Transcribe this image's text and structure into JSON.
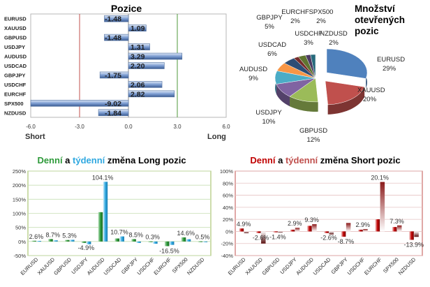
{
  "chart_data": [
    {
      "id": "positions",
      "type": "bar",
      "orientation": "horizontal",
      "title": "Pozice",
      "categories": [
        "EURUSD",
        "XAUUSD",
        "GBPUSD",
        "USDJPY",
        "AUDUSD",
        "USDCAD",
        "GBPJPY",
        "USDCHF",
        "EURCHF",
        "SPX500",
        "NZDUSD"
      ],
      "values": [
        -1.48,
        1.09,
        -1.48,
        1.31,
        3.29,
        2.2,
        -1.75,
        2.06,
        2.82,
        -9.02,
        -1.84
      ],
      "value_labels": [
        "-1.48",
        "1.09",
        "-1.48",
        "1.31",
        "3.29",
        "2.20",
        "-1.75",
        "2.06",
        "2.82",
        "-9.02",
        "-1.84"
      ],
      "xlim": [
        -6.0,
        6.0
      ],
      "ticks": [
        -6.0,
        -3.0,
        0.0,
        3.0,
        6.0
      ],
      "tick_labels": [
        "-6.0",
        "-3.0",
        "0.0",
        "3.0",
        "6.0"
      ],
      "short_label": "Short",
      "long_label": "Long",
      "colors": {
        "bar": "#7f9fd3",
        "bar_dark": "#3b5c93",
        "short_line": "#c0504d",
        "long_line": "#4f9a3a"
      }
    },
    {
      "id": "open-positions",
      "type": "pie",
      "title": "Množství otevřených pozic",
      "title_lines": [
        "Množství",
        "otevřených",
        "pozic"
      ],
      "labels": [
        "EURUSD",
        "XAUUSD",
        "GBPUSD",
        "USDJPY",
        "AUDUSD",
        "USDCAD",
        "GBPJPY",
        "EURCHF",
        "USDCHF",
        "SPX500",
        "NZDUSD"
      ],
      "values": [
        29,
        20,
        12,
        10,
        9,
        6,
        5,
        2,
        3,
        2,
        2
      ],
      "value_labels": [
        "29%",
        "20%",
        "12%",
        "10%",
        "9%",
        "6%",
        "5%",
        "2%",
        "3%",
        "2%",
        "2%"
      ],
      "colors": [
        "#4f81bd",
        "#c0504d",
        "#9bbb59",
        "#8064a2",
        "#4bacc6",
        "#f79646",
        "#2c4d75",
        "#772c2a",
        "#5f7530",
        "#4d3b62",
        "#276a7c"
      ]
    },
    {
      "id": "long-change",
      "type": "bar",
      "title_parts": [
        "Denní",
        " a ",
        "týdenní",
        " změna Long pozic"
      ],
      "title_colors": [
        "#2e9a3a",
        "#000000",
        "#2fa8e0",
        "#000000"
      ],
      "categories": [
        "EURUSD",
        "XAUUSD",
        "GBPUSD",
        "USDJPY",
        "AUDUSD",
        "USDCAD",
        "GBPJPY",
        "USDCHF",
        "EURCHF",
        "SPX500",
        "NZDUSD"
      ],
      "series": [
        {
          "values": [
            2.6,
            8.7,
            5.3,
            -4.9,
            104.1,
            10.7,
            8.5,
            0.3,
            -16.5,
            14.6,
            0.5
          ]
        },
        {
          "values": [
            2.0,
            4.0,
            6.0,
            -10.0,
            212.0,
            18.0,
            -5.0,
            -8.0,
            -12.0,
            8.0,
            0.0
          ]
        }
      ],
      "data_labels": [
        "2.6%",
        "8.7%",
        "5.3%",
        "-4.9%",
        "104.1%",
        "10.7%",
        "8.5%",
        "0.3%",
        "-16.5%",
        "14.6%",
        "0.5%"
      ],
      "ylim": [
        -50,
        250
      ],
      "ticks": [
        -50,
        0,
        50,
        100,
        150,
        200,
        250
      ],
      "tick_labels": [
        "-50%",
        "0%",
        "50%",
        "100%",
        "150%",
        "200%",
        "250%"
      ],
      "colors": {
        "daily": "#2e9a3a",
        "weekly": "#2fa8e0"
      }
    },
    {
      "id": "short-change",
      "type": "bar",
      "title_parts": [
        "Denní",
        " a ",
        "týdenní",
        " změna Short pozic"
      ],
      "title_colors": [
        "#c00000",
        "#000000",
        "#c0504d",
        "#000000"
      ],
      "categories": [
        "EURUSD",
        "XAUUSD",
        "GBPUSD",
        "USDJPY",
        "AUDUSD",
        "USDCAD",
        "GBPJPY",
        "USDCHF",
        "EURCHF",
        "SPX500",
        "NZDUSD"
      ],
      "series": [
        {
          "values": [
            4.9,
            -2.6,
            -1.4,
            2.9,
            9.3,
            -2.6,
            -8.7,
            2.9,
            20.1,
            7.3,
            -13.9
          ]
        },
        {
          "values": [
            -3.0,
            -20.0,
            -2.0,
            6.0,
            12.0,
            -5.0,
            14.0,
            4.0,
            82.0,
            10.0,
            -9.0
          ]
        }
      ],
      "data_labels": [
        "4.9%",
        "-2.6%",
        "-1.4%",
        "2.9%",
        "9.3%",
        "-2.6%",
        "-8.7%",
        "2.9%",
        "20.1%",
        "7.3%",
        "-13.9%"
      ],
      "ylim": [
        -40,
        100
      ],
      "ticks": [
        -40,
        -20,
        0,
        20,
        40,
        60,
        80,
        100
      ],
      "tick_labels": [
        "-40%",
        "-20%",
        "0%",
        "20%",
        "40%",
        "60%",
        "80%",
        "100%"
      ],
      "colors": {
        "daily": "#c00000",
        "weekly": "#8b1a1a"
      }
    }
  ]
}
